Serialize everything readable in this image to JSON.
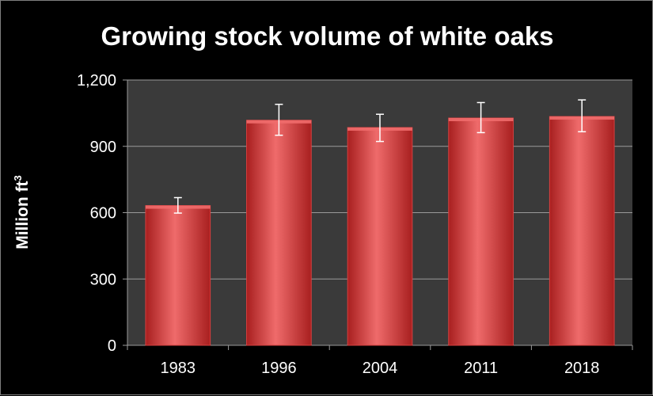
{
  "chart_data": {
    "type": "bar",
    "title": "Growing stock volume of white oaks",
    "ylabel": "Million ft",
    "ylabel_superscript": "3",
    "xlabel": "",
    "categories": [
      "1983",
      "1996",
      "2004",
      "2011",
      "2018"
    ],
    "values": [
      632,
      1018,
      985,
      1028,
      1035
    ],
    "error_low": [
      598,
      950,
      922,
      962,
      966
    ],
    "error_high": [
      668,
      1090,
      1045,
      1098,
      1110
    ],
    "ylim": [
      0,
      1200
    ],
    "yticks": [
      0,
      300,
      600,
      900,
      1200
    ],
    "ytick_labels": [
      "0",
      "300",
      "600",
      "900",
      "1,200"
    ],
    "grid": true,
    "legend": "none",
    "colors": {
      "bar": "#d84040",
      "bar_highlight": "#ef6b6b",
      "bar_shadow": "#a81f1f",
      "plot_background": "#3a3a3a",
      "gridline": "#9a9a9a",
      "error_bar": "#ffffff",
      "text": "#ffffff"
    }
  }
}
